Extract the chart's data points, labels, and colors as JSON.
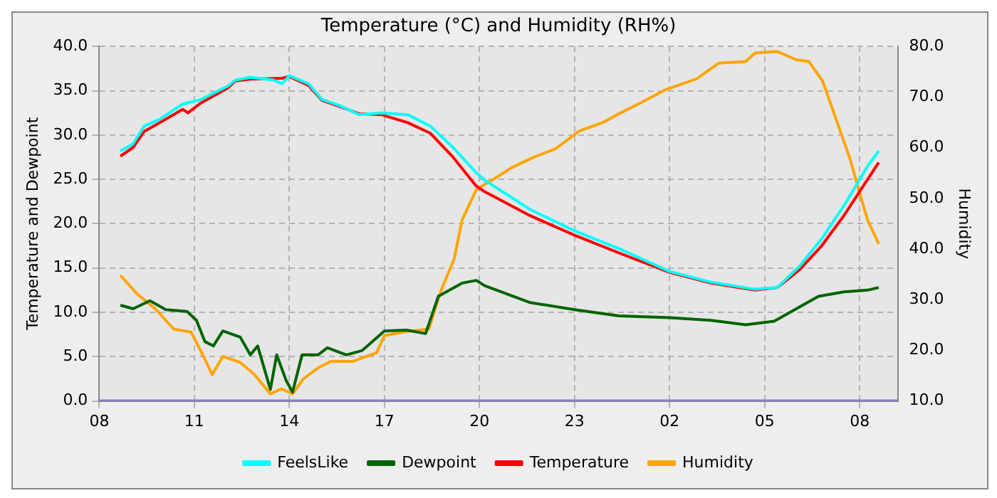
{
  "chart_data": {
    "type": "line",
    "title": "Temperature (°C) and Humidity (RH%)",
    "ylabel": "Temperature and Dewpoint",
    "y2label": "Humidity",
    "xlim": [
      "--01-01T08:00",
      "--01-02T09:12"
    ],
    "xticks": [
      {
        "value": "--01-01T08:00",
        "label": "08"
      },
      {
        "value": "--01-01T11:00",
        "label": "11"
      },
      {
        "value": "--01-01T14:00",
        "label": "14"
      },
      {
        "value": "--01-01T17:00",
        "label": "17"
      },
      {
        "value": "--01-01T20:00",
        "label": "20"
      },
      {
        "value": "--01-01T23:00",
        "label": "23"
      },
      {
        "value": "--01-02T02:00",
        "label": "02"
      },
      {
        "value": "--01-02T05:00",
        "label": "05"
      },
      {
        "value": "--01-02T08:00",
        "label": "08"
      }
    ],
    "ylim": [
      0,
      40
    ],
    "yticks": [
      {
        "value": 0,
        "label": "0.0"
      },
      {
        "value": 5,
        "label": "5.0"
      },
      {
        "value": 10,
        "label": "10.0"
      },
      {
        "value": 15,
        "label": "15.0"
      },
      {
        "value": 20,
        "label": "20.0"
      },
      {
        "value": 25,
        "label": "25.0"
      },
      {
        "value": 30,
        "label": "30.0"
      },
      {
        "value": 35,
        "label": "35.0"
      },
      {
        "value": 40,
        "label": "40.0"
      }
    ],
    "y2lim": [
      10,
      80
    ],
    "y2ticks": [
      {
        "value": 10,
        "label": "10.0"
      },
      {
        "value": 20,
        "label": "20.0"
      },
      {
        "value": 30,
        "label": "30.0"
      },
      {
        "value": 40,
        "label": "40.0"
      },
      {
        "value": 50,
        "label": "50.0"
      },
      {
        "value": 60,
        "label": "60.0"
      },
      {
        "value": 70,
        "label": "70.0"
      },
      {
        "value": 80,
        "label": "80.0"
      }
    ],
    "grid": true,
    "legend": "bottom",
    "line_style": "solid",
    "series": [
      {
        "name": "FeelsLike",
        "color": "#00ffff",
        "x": [
          "--01-01T08:40",
          "--01-01T09:04",
          "--01-01T09:25",
          "--01-01T09:55",
          "--01-01T10:38",
          "--01-01T11:12",
          "--01-01T12:03",
          "--01-01T12:18",
          "--01-01T12:46",
          "--01-01T13:30",
          "--01-01T13:46",
          "--01-01T14:00",
          "--01-01T14:36",
          "--01-01T15:02",
          "--01-01T15:36",
          "--01-01T16:12",
          "--01-01T16:54",
          "--01-01T17:44",
          "--01-01T18:27",
          "--01-01T19:10",
          "--01-01T19:53",
          "--01-01T20:10",
          "--01-01T21:36",
          "--01-01T23:00",
          "--01-02T00:24",
          "--01-02T02:00",
          "--01-02T03:18",
          "--01-02T04:42",
          "--01-02T05:24",
          "--01-02T06:06",
          "--01-02T06:48",
          "--01-02T07:30",
          "--01-02T08:15",
          "--01-02T08:36"
        ],
        "values": [
          28.2,
          29,
          31,
          31.8,
          33.5,
          34,
          35.5,
          36.2,
          36.5,
          36.2,
          35.8,
          36.7,
          35.8,
          34,
          33.3,
          32.3,
          32.5,
          32.3,
          31,
          28.6,
          25.8,
          24.9,
          21.6,
          19.2,
          17.2,
          14.6,
          13.4,
          12.6,
          12.8,
          15.2,
          18.3,
          22,
          26.5,
          28.2
        ]
      },
      {
        "name": "Dewpoint",
        "color": "#006400",
        "x": [
          "--01-01T08:40",
          "--01-01T09:04",
          "--01-01T09:36",
          "--01-01T10:06",
          "--01-01T10:46",
          "--01-01T11:04",
          "--01-01T11:20",
          "--01-01T11:36",
          "--01-01T11:54",
          "--01-01T12:27",
          "--01-01T12:46",
          "--01-01T13:00",
          "--01-01T13:24",
          "--01-01T13:36",
          "--01-01T13:54",
          "--01-01T14:06",
          "--01-01T14:24",
          "--01-01T14:54",
          "--01-01T15:12",
          "--01-01T15:48",
          "--01-01T16:18",
          "--01-01T17:00",
          "--01-01T17:42",
          "--01-01T18:18",
          "--01-01T18:42",
          "--01-01T19:27",
          "--01-01T19:54",
          "--01-01T20:10",
          "--01-01T21:36",
          "--01-01T23:00",
          "--01-02T00:24",
          "--01-02T02:00",
          "--01-02T03:18",
          "--01-02T04:24",
          "--01-02T05:18",
          "--01-02T06:06",
          "--01-02T06:42",
          "--01-02T07:30",
          "--01-02T08:15",
          "--01-02T08:36"
        ],
        "values": [
          10.8,
          10.4,
          11.3,
          10.3,
          10.1,
          9.1,
          6.7,
          6.2,
          7.9,
          7.2,
          5.2,
          6.2,
          1.3,
          5.2,
          2.3,
          1.0,
          5.2,
          5.2,
          6.0,
          5.2,
          5.7,
          7.9,
          8.0,
          7.6,
          11.8,
          13.3,
          13.6,
          13.0,
          11.1,
          10.3,
          9.6,
          9.4,
          9.1,
          8.6,
          9.0,
          10.6,
          11.8,
          12.3,
          12.5,
          12.8
        ]
      },
      {
        "name": "Temperature",
        "color": "#ff0000",
        "x": [
          "--01-01T08:40",
          "--01-01T09:04",
          "--01-01T09:25",
          "--01-01T09:55",
          "--01-01T10:38",
          "--01-01T10:48",
          "--01-01T11:12",
          "--01-01T12:03",
          "--01-01T12:18",
          "--01-01T12:46",
          "--01-01T13:46",
          "--01-01T14:00",
          "--01-01T14:36",
          "--01-01T15:02",
          "--01-01T15:36",
          "--01-01T16:12",
          "--01-01T16:54",
          "--01-01T17:44",
          "--01-01T18:27",
          "--01-01T19:10",
          "--01-01T19:53",
          "--01-01T20:10",
          "--01-01T21:36",
          "--01-01T23:00",
          "--01-02T00:24",
          "--01-02T02:00",
          "--01-02T03:18",
          "--01-02T04:42",
          "--01-02T05:24",
          "--01-02T06:06",
          "--01-02T06:48",
          "--01-02T07:30",
          "--01-02T08:15",
          "--01-02T08:36"
        ],
        "values": [
          27.6,
          28.6,
          30.4,
          31.4,
          32.9,
          32.5,
          33.6,
          35.3,
          36.1,
          36.3,
          36.4,
          36.6,
          35.6,
          33.9,
          33.2,
          32.4,
          32.3,
          31.4,
          30.2,
          27.5,
          24.3,
          23.6,
          20.9,
          18.7,
          16.7,
          14.5,
          13.3,
          12.5,
          12.8,
          14.8,
          17.5,
          20.9,
          25,
          26.9
        ]
      },
      {
        "name": "Humidity",
        "color": "#ffa500",
        "axis": "y2",
        "x": [
          "--01-01T08:40",
          "--01-01T09:12",
          "--01-01T09:47",
          "--01-01T10:21",
          "--01-01T10:54",
          "--01-01T11:16",
          "--01-01T11:34",
          "--01-01T11:54",
          "--01-01T12:27",
          "--01-01T12:54",
          "--01-01T13:24",
          "--01-01T13:45",
          "--01-01T14:06",
          "--01-01T14:27",
          "--01-01T14:54",
          "--01-01T15:18",
          "--01-01T16:00",
          "--01-01T16:45",
          "--01-01T17:00",
          "--01-01T17:42",
          "--01-01T18:24",
          "--01-01T18:48",
          "--01-01T19:12",
          "--01-01T19:27",
          "--01-01T19:54",
          "--01-01T20:18",
          "--01-01T20:27",
          "--01-01T21:00",
          "--01-01T21:42",
          "--01-01T22:24",
          "--01-01T23:09",
          "--01-01T23:54",
          "--01-02T00:24",
          "--01-02T01:06",
          "--01-02T01:51",
          "--01-02T02:51",
          "--01-02T03:33",
          "--01-02T04:24",
          "--01-02T04:42",
          "--01-02T05:24",
          "--01-02T05:59",
          "--01-02T06:24",
          "--01-02T06:50",
          "--01-02T07:16",
          "--01-02T07:42",
          "--01-02T07:58",
          "--01-02T08:15",
          "--01-02T08:36"
        ],
        "values": [
          34.8,
          31.1,
          28.1,
          24.2,
          23.6,
          19.1,
          15.2,
          18.8,
          17.6,
          15.2,
          11.4,
          12.4,
          11.4,
          14.4,
          16.5,
          17.8,
          17.8,
          19.5,
          22.9,
          23.7,
          24.2,
          32,
          38,
          45.7,
          51.7,
          53.3,
          53.8,
          56,
          58.1,
          59.8,
          63.3,
          65,
          66.7,
          68.9,
          71.4,
          73.6,
          76.7,
          77,
          78.7,
          79,
          77.4,
          77,
          73.1,
          65.4,
          57.7,
          51.7,
          45.7,
          41
        ]
      },
      {
        "color": "#8080e0",
        "x": [
          "--01-01T08:00",
          "--01-02T09:12"
        ],
        "values": [
          0,
          0
        ]
      }
    ]
  }
}
